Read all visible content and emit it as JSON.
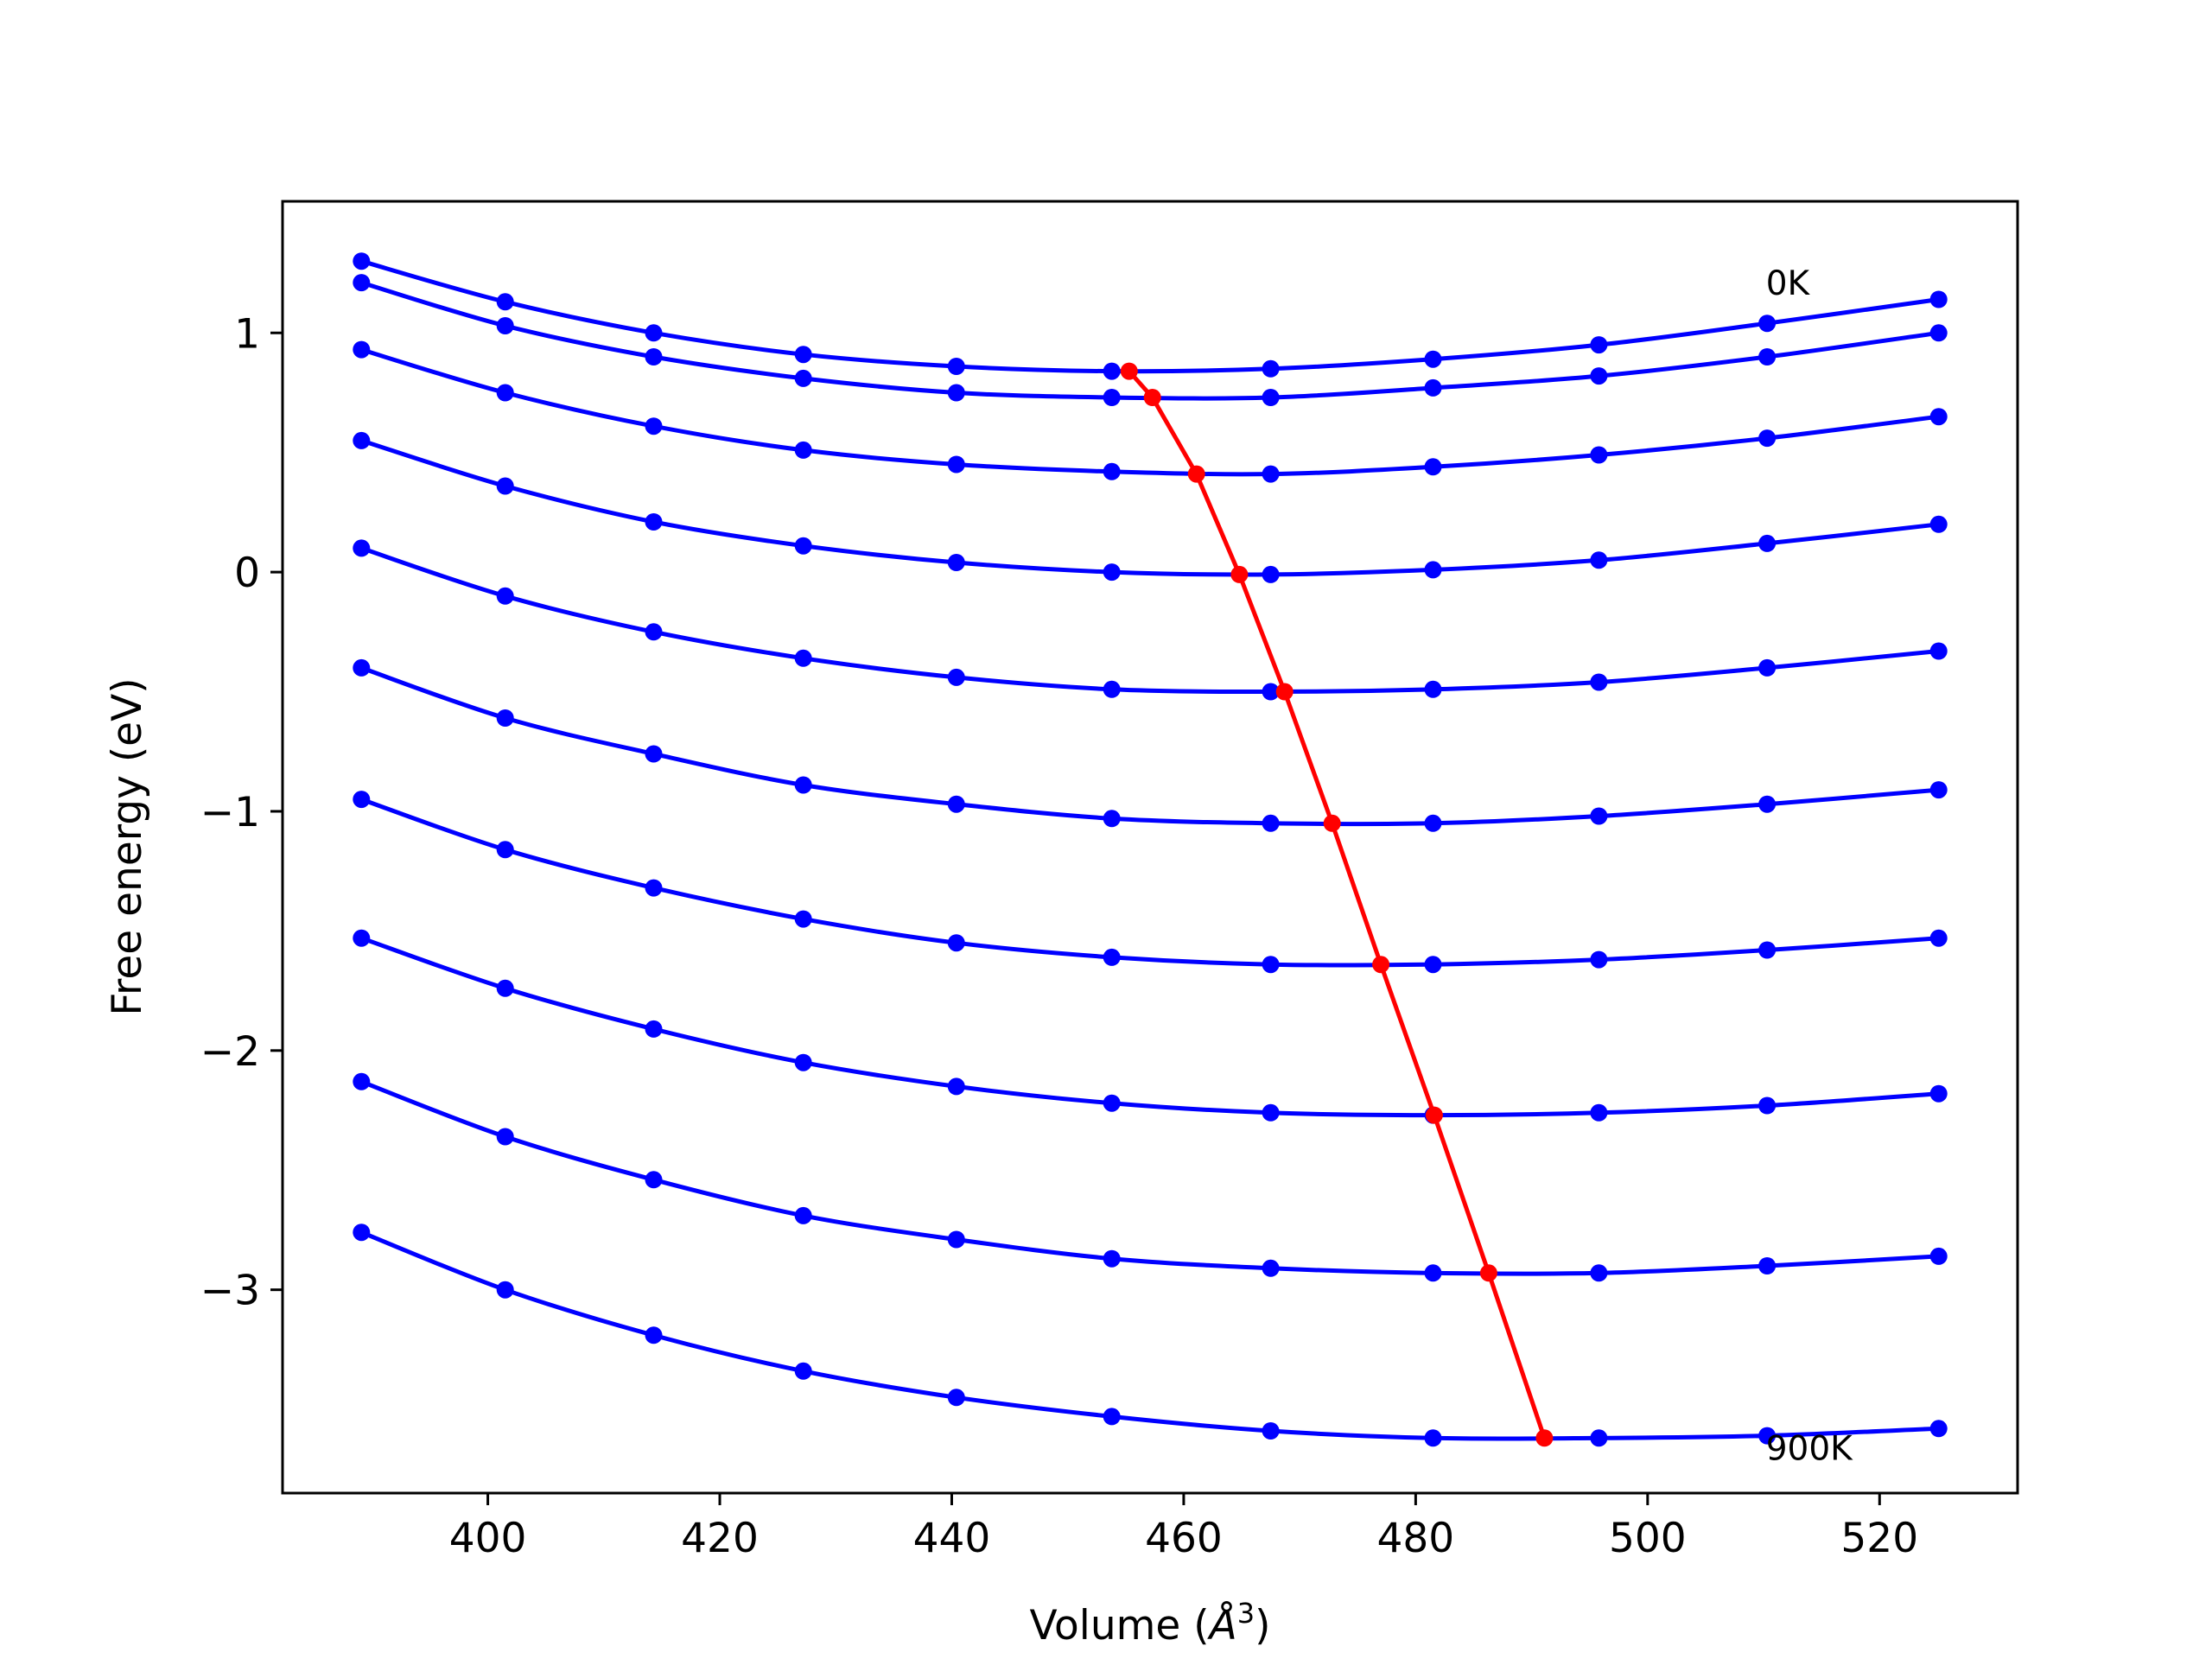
{
  "chart_data": {
    "type": "line",
    "title": "",
    "xlabel": "Volume (Å³)",
    "xlabel_base": "Volume (",
    "xlabel_symbol": "Å",
    "xlabel_sup": "3",
    "xlabel_close": ")",
    "ylabel": "Free energy (eV)",
    "xlim": [
      382.3,
      531.9
    ],
    "ylim": [
      -3.85,
      1.55
    ],
    "x_ticks": [
      400,
      420,
      440,
      460,
      480,
      500,
      520
    ],
    "y_ticks": [
      1,
      0,
      -1,
      -2,
      -3
    ],
    "y_tick_labels": [
      "1",
      "0",
      "−1",
      "−2",
      "−3"
    ],
    "grid": false,
    "colors": {
      "curves": "#0000ff",
      "minimum": "#ff0000"
    },
    "annotations": [
      {
        "text": "0K",
        "x": 510.2,
        "y": 1.21
      },
      {
        "text": "900K",
        "x": 510.2,
        "y": -3.66
      }
    ],
    "x": [
      389.1,
      401.5,
      414.3,
      427.2,
      440.4,
      453.8,
      467.5,
      481.5,
      495.8,
      510.3,
      525.1
    ],
    "series": [
      {
        "values": [
          1.3,
          1.13,
          1.0,
          0.91,
          0.86,
          0.84,
          0.85,
          0.89,
          0.95,
          1.04,
          1.14
        ]
      },
      {
        "values": [
          1.21,
          1.03,
          0.9,
          0.81,
          0.75,
          0.73,
          0.73,
          0.77,
          0.82,
          0.9,
          1.0
        ]
      },
      {
        "values": [
          0.93,
          0.75,
          0.61,
          0.51,
          0.45,
          0.42,
          0.41,
          0.44,
          0.49,
          0.56,
          0.65
        ]
      },
      {
        "values": [
          0.55,
          0.36,
          0.21,
          0.11,
          0.04,
          0.0,
          -0.01,
          0.01,
          0.05,
          0.12,
          0.2
        ]
      },
      {
        "values": [
          0.1,
          -0.1,
          -0.25,
          -0.36,
          -0.44,
          -0.49,
          -0.5,
          -0.49,
          -0.46,
          -0.4,
          -0.33
        ]
      },
      {
        "values": [
          -0.4,
          -0.61,
          -0.76,
          -0.89,
          -0.97,
          -1.03,
          -1.05,
          -1.05,
          -1.02,
          -0.97,
          -0.91
        ]
      },
      {
        "values": [
          -0.95,
          -1.16,
          -1.32,
          -1.45,
          -1.55,
          -1.61,
          -1.64,
          -1.64,
          -1.62,
          -1.58,
          -1.53
        ]
      },
      {
        "values": [
          -1.53,
          -1.74,
          -1.91,
          -2.05,
          -2.15,
          -2.22,
          -2.26,
          -2.27,
          -2.26,
          -2.23,
          -2.18
        ]
      },
      {
        "values": [
          -2.13,
          -2.36,
          -2.54,
          -2.69,
          -2.79,
          -2.87,
          -2.91,
          -2.93,
          -2.93,
          -2.9,
          -2.86
        ]
      },
      {
        "values": [
          -2.76,
          -3.0,
          -3.19,
          -3.34,
          -3.45,
          -3.53,
          -3.59,
          -3.62,
          -3.62,
          -3.61,
          -3.58
        ]
      }
    ],
    "minimum_line": {
      "x": [
        455.3,
        457.3,
        461.1,
        464.8,
        468.7,
        472.8,
        477.0,
        481.6,
        486.3,
        491.1
      ],
      "y": [
        0.84,
        0.73,
        0.41,
        -0.01,
        -0.5,
        -1.05,
        -1.64,
        -2.27,
        -2.93,
        -3.62
      ]
    }
  }
}
